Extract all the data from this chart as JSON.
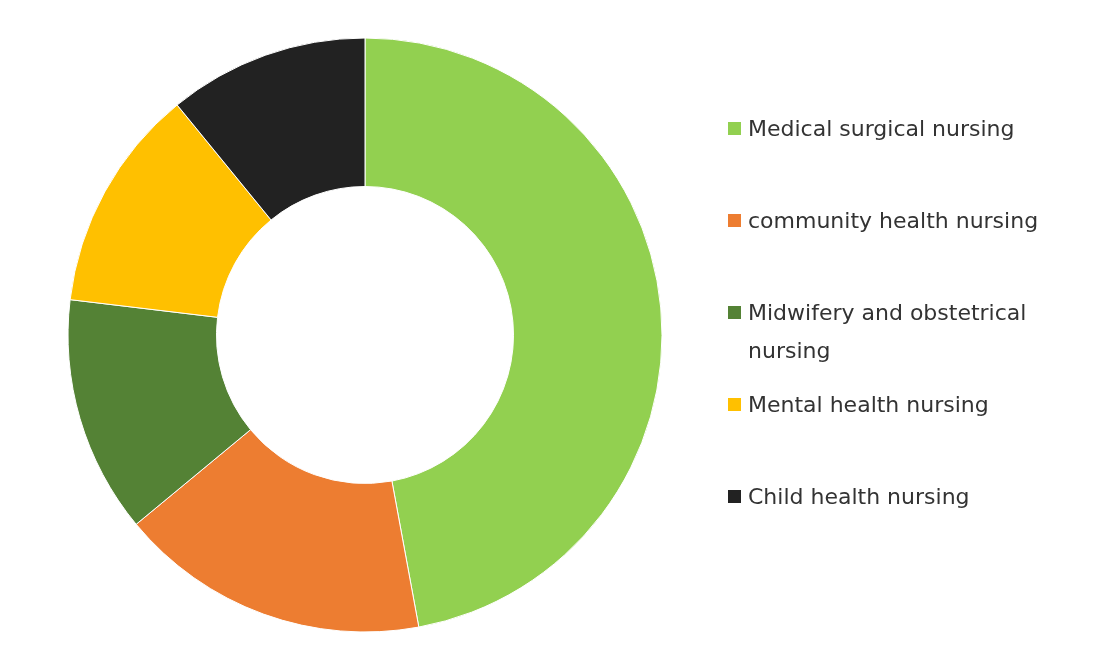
{
  "chart_data": {
    "type": "donut",
    "categories": [
      "Medical surgical nursing",
      "community health nursing",
      "Midwifery and obstetrical nursing",
      "Mental health nursing",
      "Child health nursing"
    ],
    "values": [
      47.1,
      16.9,
      12.9,
      12.2,
      10.9
    ],
    "colors": [
      "#92d050",
      "#ed7d31",
      "#548235",
      "#ffc000",
      "#222222"
    ],
    "legend": "right"
  }
}
